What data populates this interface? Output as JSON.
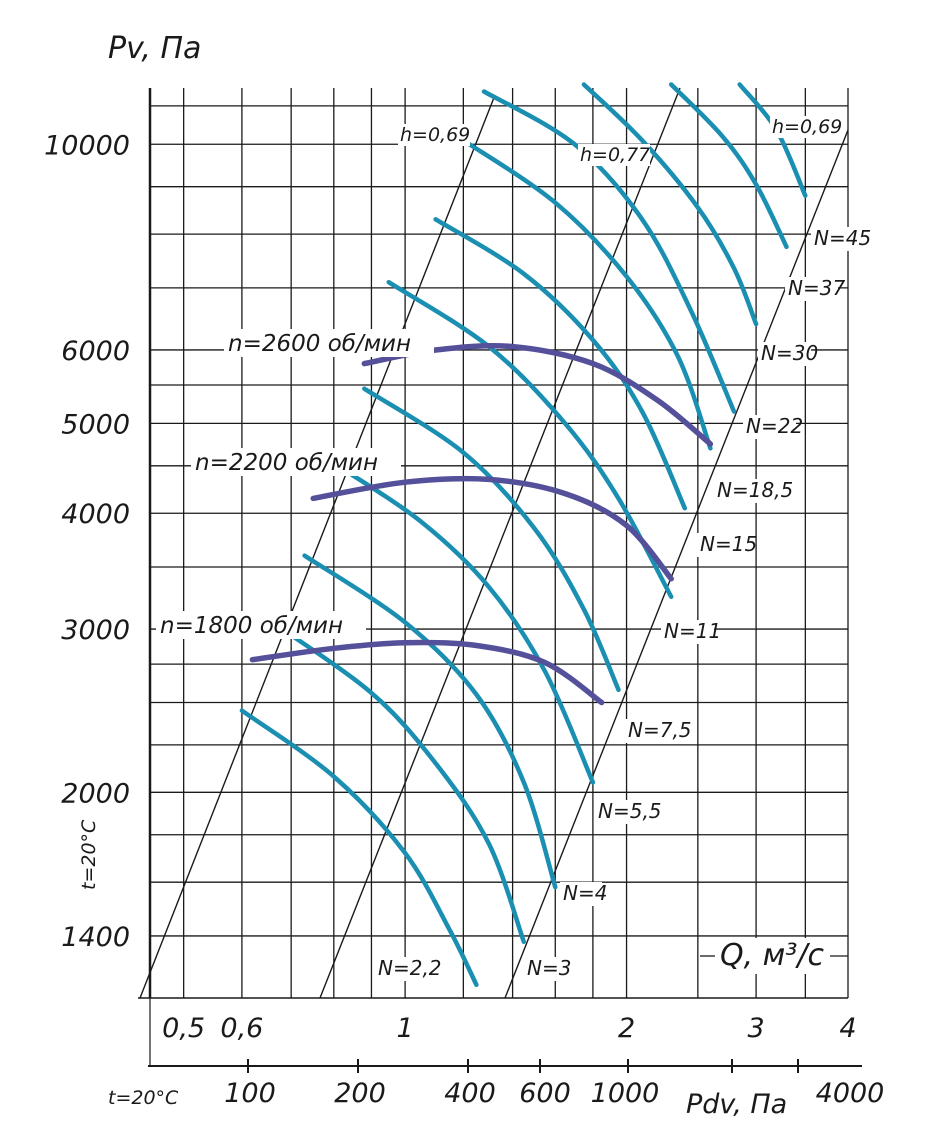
{
  "chart_data": {
    "type": "line",
    "title": "",
    "ylabel": "Pv, Па",
    "xlabel": "Q, м³/с",
    "xlabel2": "Pdv, Па",
    "temperature_left": "t=20°C",
    "temperature_bottom": "t=20°C",
    "yscale": "log",
    "xscale": "log",
    "ylim": [
      1200,
      11500
    ],
    "xlim": [
      0.45,
      4.0
    ],
    "y_ticks": [
      "1400",
      "2000",
      "3000",
      "4000",
      "5000",
      "6000",
      "10000"
    ],
    "x_ticks": [
      "0,5",
      "0,6",
      "1",
      "2",
      "3",
      "4"
    ],
    "pdv_ticks": [
      "100",
      "200",
      "400",
      "600",
      "1000",
      "4000"
    ],
    "grid": true,
    "efficiency_labels": [
      "h=0,69",
      "h=0,77",
      "h=0,69"
    ],
    "rpm_series": [
      {
        "name": "n=1800 об/мин",
        "points": [
          [
            0.62,
            2780
          ],
          [
            0.8,
            2860
          ],
          [
            1.0,
            2900
          ],
          [
            1.25,
            2880
          ],
          [
            1.55,
            2760
          ],
          [
            1.85,
            2500
          ]
        ]
      },
      {
        "name": "n=2200 об/мин",
        "points": [
          [
            0.75,
            4150
          ],
          [
            1.0,
            4320
          ],
          [
            1.3,
            4350
          ],
          [
            1.65,
            4200
          ],
          [
            2.0,
            3880
          ],
          [
            2.3,
            3400
          ]
        ]
      },
      {
        "name": "n=2600 об/мин",
        "points": [
          [
            0.88,
            5800
          ],
          [
            1.1,
            6000
          ],
          [
            1.4,
            6050
          ],
          [
            1.8,
            5800
          ],
          [
            2.2,
            5300
          ],
          [
            2.6,
            4750
          ]
        ]
      }
    ],
    "power_curves": [
      {
        "name": "N=2,2",
        "points": [
          [
            0.6,
            2450
          ],
          [
            0.8,
            2080
          ],
          [
            1.0,
            1720
          ],
          [
            1.15,
            1420
          ],
          [
            1.25,
            1240
          ]
        ]
      },
      {
        "name": "N=3",
        "points": [
          [
            0.66,
            3050
          ],
          [
            0.9,
            2560
          ],
          [
            1.1,
            2150
          ],
          [
            1.3,
            1760
          ],
          [
            1.45,
            1380
          ]
        ]
      },
      {
        "name": "N=4",
        "points": [
          [
            0.73,
            3600
          ],
          [
            1.0,
            3050
          ],
          [
            1.25,
            2550
          ],
          [
            1.45,
            2050
          ],
          [
            1.6,
            1580
          ]
        ]
      },
      {
        "name": "N=5,5",
        "points": [
          [
            0.81,
            4500
          ],
          [
            1.05,
            3920
          ],
          [
            1.3,
            3330
          ],
          [
            1.55,
            2700
          ],
          [
            1.8,
            2050
          ]
        ]
      },
      {
        "name": "N=7,5",
        "points": [
          [
            0.88,
            5450
          ],
          [
            1.2,
            4650
          ],
          [
            1.5,
            3850
          ],
          [
            1.75,
            3150
          ],
          [
            1.95,
            2580
          ]
        ]
      },
      {
        "name": "N=11",
        "points": [
          [
            0.95,
            7100
          ],
          [
            1.3,
            6050
          ],
          [
            1.65,
            5000
          ],
          [
            1.95,
            4150
          ],
          [
            2.3,
            3250
          ]
        ]
      },
      {
        "name": "N=15",
        "points": [
          [
            1.1,
            8300
          ],
          [
            1.45,
            7250
          ],
          [
            1.8,
            6150
          ],
          [
            2.1,
            5150
          ],
          [
            2.4,
            4050
          ]
        ]
      },
      {
        "name": "N=18,5",
        "points": [
          [
            1.2,
            10100
          ],
          [
            1.6,
            8650
          ],
          [
            2.0,
            7200
          ],
          [
            2.35,
            5900
          ],
          [
            2.6,
            4700
          ]
        ]
      },
      {
        "name": "N=22",
        "points": [
          [
            1.28,
            11400
          ],
          [
            1.7,
            10000
          ],
          [
            2.1,
            8300
          ],
          [
            2.45,
            6600
          ],
          [
            2.8,
            5150
          ]
        ]
      },
      {
        "name": "N=30",
        "points": [
          [
            1.75,
            11600
          ],
          [
            2.1,
            10100
          ],
          [
            2.5,
            8550
          ],
          [
            2.8,
            7350
          ],
          [
            3.0,
            6400
          ]
        ]
      },
      {
        "name": "N=37",
        "points": [
          [
            2.3,
            11600
          ],
          [
            2.7,
            10200
          ],
          [
            3.0,
            9050
          ],
          [
            3.3,
            7750
          ]
        ]
      },
      {
        "name": "N=45",
        "points": [
          [
            2.85,
            11600
          ],
          [
            3.2,
            10350
          ],
          [
            3.5,
            8800
          ]
        ]
      }
    ]
  },
  "colors": {
    "power_curve": "#1a8fb2",
    "rpm_curve": "#54509a",
    "grid": "#1a1a1a",
    "background": "#ffffff"
  }
}
